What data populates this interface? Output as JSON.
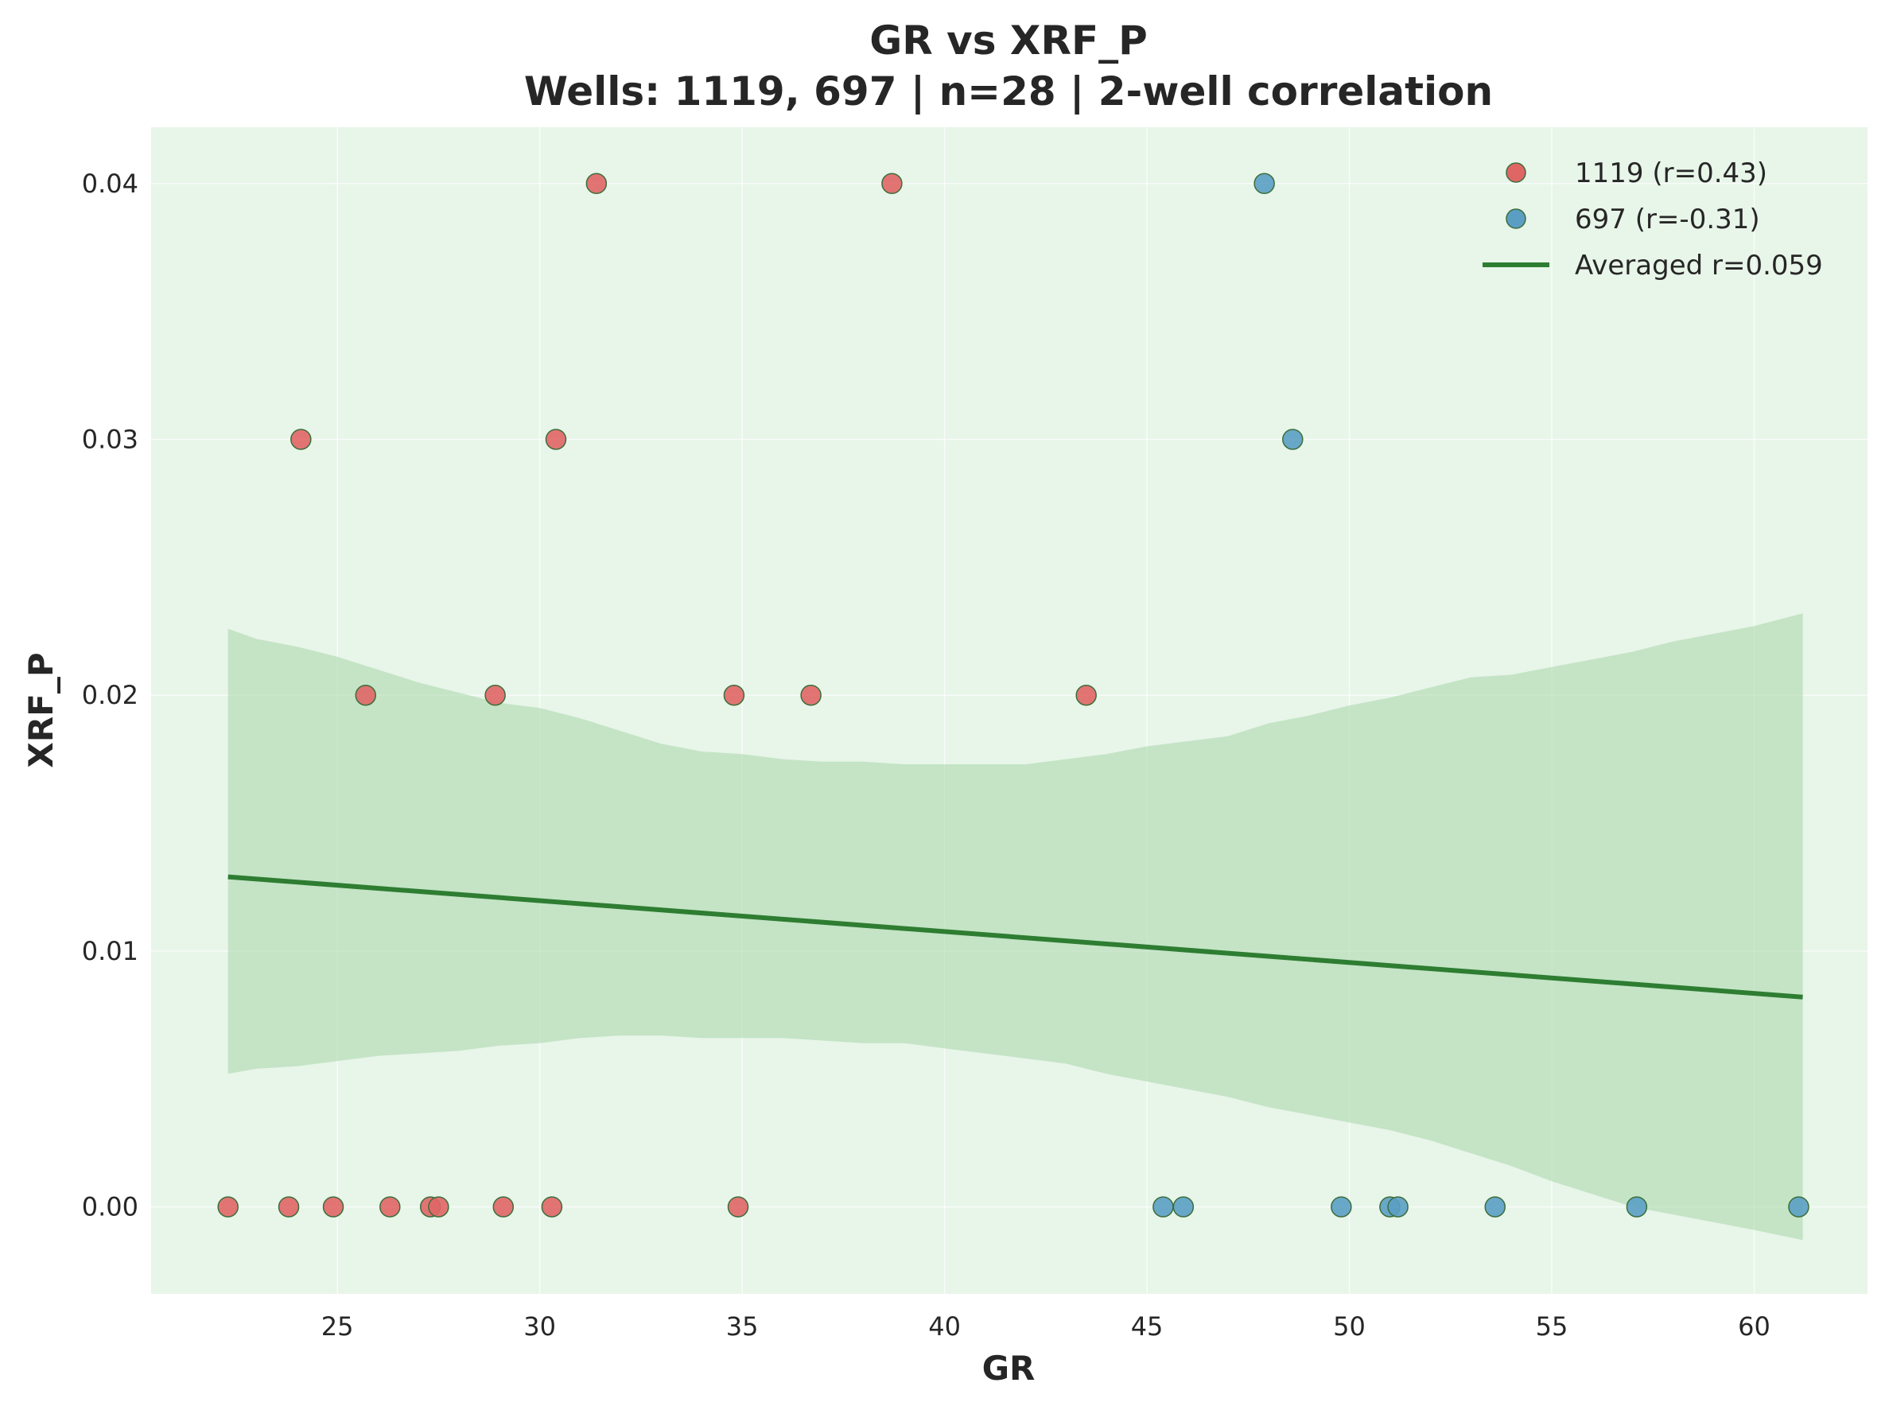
{
  "chart_data": {
    "type": "scatter",
    "title_line1": "GR vs XRF_P",
    "title_line2": "Wells: 1119, 697 | n=28 | 2-well correlation",
    "xlabel": "GR",
    "ylabel": "XRF_P",
    "xlim": [
      20.4,
      62.8
    ],
    "ylim": [
      -0.0034,
      0.0422
    ],
    "x_ticks": [
      25,
      30,
      35,
      40,
      45,
      50,
      55,
      60
    ],
    "x_tick_labels": [
      "25",
      "30",
      "35",
      "40",
      "45",
      "50",
      "55",
      "60"
    ],
    "y_ticks": [
      0.0,
      0.01,
      0.02,
      0.03,
      0.04
    ],
    "y_tick_labels": [
      "0.00",
      "0.01",
      "0.02",
      "0.03",
      "0.04"
    ],
    "grid": true,
    "legend_position": "upper-right",
    "colors": {
      "plot_background": "#e8f5e9",
      "series_1119": "#e06666",
      "series_697": "#5b9ec4",
      "marker_edge": "#3b6e3b",
      "fit_line": "#2e7d32",
      "confidence_band": "#a5d6a7"
    },
    "series": [
      {
        "name": "1119",
        "legend_label": "1119 (r=0.43)",
        "r": 0.43,
        "points": [
          [
            22.3,
            0.0
          ],
          [
            23.8,
            0.0
          ],
          [
            24.1,
            0.03
          ],
          [
            24.9,
            0.0
          ],
          [
            25.7,
            0.02
          ],
          [
            26.3,
            0.0
          ],
          [
            27.3,
            0.0
          ],
          [
            27.5,
            0.0
          ],
          [
            28.9,
            0.02
          ],
          [
            29.1,
            0.0
          ],
          [
            30.3,
            0.0
          ],
          [
            30.4,
            0.03
          ],
          [
            31.4,
            0.04
          ],
          [
            34.8,
            0.02
          ],
          [
            34.9,
            0.0
          ],
          [
            36.7,
            0.02
          ],
          [
            38.7,
            0.04
          ],
          [
            43.5,
            0.02
          ]
        ]
      },
      {
        "name": "697",
        "legend_label": "697 (r=-0.31)",
        "r": -0.31,
        "points": [
          [
            45.4,
            0.0
          ],
          [
            45.9,
            0.0
          ],
          [
            47.9,
            0.04
          ],
          [
            48.6,
            0.03
          ],
          [
            49.8,
            0.0
          ],
          [
            51.0,
            0.0
          ],
          [
            51.2,
            0.0
          ],
          [
            53.6,
            0.0
          ],
          [
            57.1,
            0.0
          ],
          [
            61.1,
            0.0
          ]
        ]
      }
    ],
    "fit_line": {
      "legend_label": "Averaged r=0.059",
      "r": 0.059,
      "x": [
        22.3,
        61.2
      ],
      "y": [
        0.0129,
        0.0082
      ]
    },
    "confidence_band": {
      "x": [
        22.3,
        23.0,
        24.0,
        25.0,
        26.0,
        27.0,
        28.0,
        29.0,
        30.0,
        31.0,
        32.0,
        33.0,
        34.0,
        35.0,
        36.0,
        37.0,
        38.0,
        39.0,
        40.0,
        41.0,
        42.0,
        43.0,
        44.0,
        45.0,
        46.0,
        47.0,
        48.0,
        49.0,
        50.0,
        51.0,
        52.0,
        53.0,
        54.0,
        55.0,
        56.0,
        57.0,
        58.0,
        59.0,
        60.0,
        61.2
      ],
      "upper": [
        0.0226,
        0.0222,
        0.0219,
        0.0215,
        0.021,
        0.0205,
        0.0201,
        0.0197,
        0.0195,
        0.0191,
        0.0186,
        0.0181,
        0.0178,
        0.0177,
        0.0175,
        0.0174,
        0.0174,
        0.0173,
        0.0173,
        0.0173,
        0.0173,
        0.0175,
        0.0177,
        0.018,
        0.0182,
        0.0184,
        0.0189,
        0.0192,
        0.0196,
        0.0199,
        0.0203,
        0.0207,
        0.0208,
        0.0211,
        0.0214,
        0.0217,
        0.0221,
        0.0224,
        0.0227,
        0.0232
      ],
      "lower": [
        0.0052,
        0.0054,
        0.0055,
        0.0057,
        0.0059,
        0.006,
        0.0061,
        0.0063,
        0.0064,
        0.0066,
        0.0067,
        0.0067,
        0.0066,
        0.0066,
        0.0066,
        0.0065,
        0.0064,
        0.0064,
        0.0062,
        0.006,
        0.0058,
        0.0056,
        0.0052,
        0.0049,
        0.0046,
        0.0043,
        0.0039,
        0.0036,
        0.0033,
        0.003,
        0.0026,
        0.0021,
        0.0016,
        0.001,
        0.0005,
        0.0,
        -0.0003,
        -0.0006,
        -0.0009,
        -0.0013
      ]
    }
  }
}
